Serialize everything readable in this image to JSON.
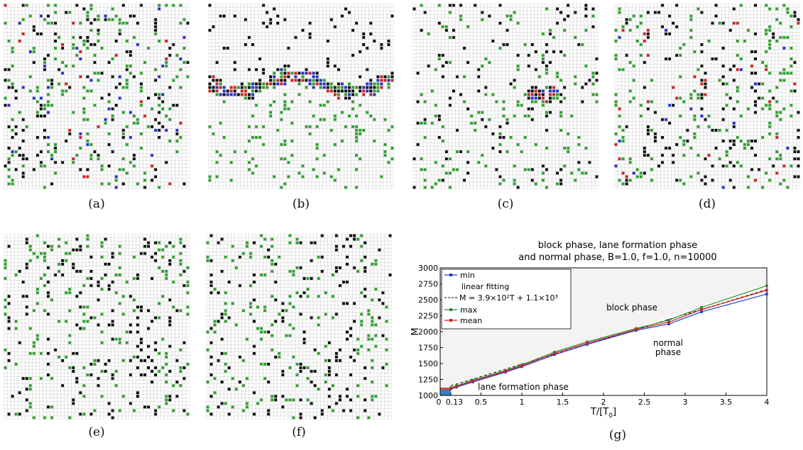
{
  "panels": [
    {
      "caption": "(a)",
      "state": "mixed"
    },
    {
      "caption": "(b)",
      "state": "band"
    },
    {
      "caption": "(c)",
      "state": "cluster"
    },
    {
      "caption": "(d)",
      "state": "lanes-partial"
    },
    {
      "caption": "(e)",
      "state": "lanes"
    },
    {
      "caption": "(f)",
      "state": "lanes"
    }
  ],
  "agent_colors": {
    "grid": "#c8c8c8",
    "black": "#000000",
    "green": "#2aa02a",
    "blue": "#1f2fd0",
    "red": "#d02020"
  },
  "chart_caption": "(g)",
  "chart_data": {
    "type": "line",
    "title": "block phase, lane formation phase",
    "subtitle": "and normal phase, B=1.0, f=1.0, n=10000",
    "xlabel": "T/[T",
    "xlabel_sub": "0",
    "xlabel_end": "]",
    "ylabel": "M",
    "xlim": [
      0,
      4
    ],
    "ylim": [
      1000,
      3000
    ],
    "xticks": [
      "0",
      "0.13",
      "0.5",
      "1",
      "1.5",
      "2",
      "2.5",
      "3",
      "3.5",
      "4"
    ],
    "xtick_values": [
      0,
      0.13,
      0.5,
      1,
      1.5,
      2,
      2.5,
      3,
      3.5,
      4
    ],
    "yticks": [
      1000,
      1250,
      1500,
      1750,
      2000,
      2250,
      2500,
      2750,
      3000
    ],
    "x": [
      0.13,
      0.2,
      0.4,
      0.8,
      1.0,
      1.4,
      1.8,
      2.4,
      2.8,
      3.2,
      4.0
    ],
    "series": [
      {
        "name": "min",
        "color": "#1f3fcc",
        "values": [
          1100,
          1130,
          1210,
          1365,
          1450,
          1640,
          1800,
          2020,
          2120,
          2310,
          2590
        ]
      },
      {
        "name": "max",
        "color": "#2a8a2a",
        "values": [
          1120,
          1150,
          1240,
          1390,
          1480,
          1680,
          1840,
          2050,
          2180,
          2380,
          2720
        ]
      },
      {
        "name": "mean",
        "color": "#d42020",
        "values": [
          1110,
          1140,
          1225,
          1378,
          1465,
          1660,
          1820,
          2035,
          2150,
          2345,
          2650
        ]
      }
    ],
    "fit": {
      "name_line1": "linear fitting",
      "name_line2": "M = 3.9×10²T + 1.1×10³",
      "slope": 390,
      "intercept": 1100
    },
    "legend_order": [
      "min",
      "fit",
      "max",
      "mean"
    ],
    "legend_position": "top-left",
    "region_labels": {
      "block": "block phase",
      "normal_1": "normal",
      "normal_2": "phase",
      "lane": "lane formation phase"
    },
    "colors": {
      "block_region": "#f3f3f3",
      "lane_region": "#2a86c6",
      "lane_marker": "#d0453a"
    },
    "grid": false
  }
}
